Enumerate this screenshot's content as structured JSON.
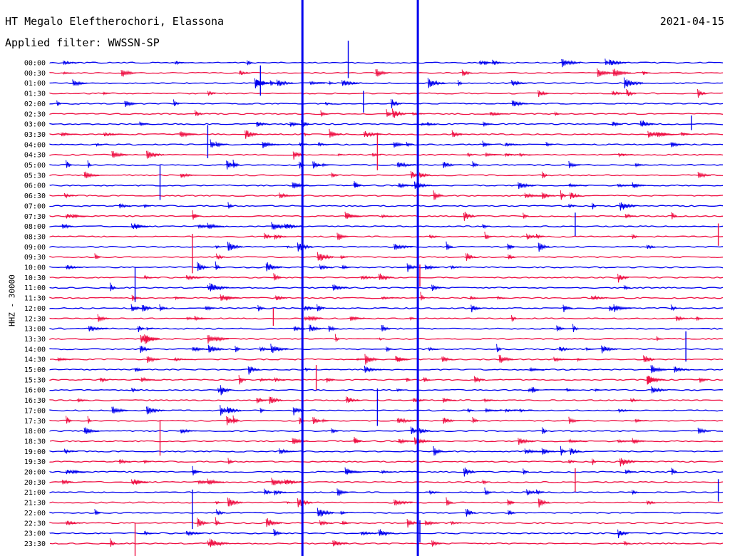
{
  "header": {
    "station": "HT Megalo Eleftherochori, Elassona",
    "filter": "Applied filter: WWSSN-SP",
    "date": "2021-04-15"
  },
  "axis_label": "HHZ - 30000",
  "colors": {
    "trace_a": "#0000ee",
    "trace_b": "#ee1144",
    "text": "#000000"
  },
  "chart_data": {
    "type": "line",
    "plot_kind": "helicorder",
    "ylabel": "HHZ - 30000",
    "tick_labels": [
      "00:00",
      "00:30",
      "01:00",
      "01:30",
      "02:00",
      "02:30",
      "03:00",
      "03:30",
      "04:00",
      "04:30",
      "05:00",
      "05:30",
      "06:00",
      "06:30",
      "07:00",
      "07:30",
      "08:00",
      "08:30",
      "09:00",
      "09:30",
      "10:00",
      "10:30",
      "11:00",
      "11:30",
      "12:00",
      "12:30",
      "13:00",
      "13:30",
      "14:00",
      "14:30",
      "15:00",
      "15:30",
      "16:00",
      "16:30",
      "17:00",
      "17:30",
      "18:00",
      "18:30",
      "19:00",
      "19:30",
      "20:00",
      "20:30",
      "21:00",
      "21:30",
      "22:00",
      "22:30",
      "23:00",
      "23:30"
    ],
    "series_colors": [
      "#0000ee",
      "#ee1144"
    ],
    "saturated_trace_columns_fraction": [
      0.374,
      0.545
    ]
  }
}
